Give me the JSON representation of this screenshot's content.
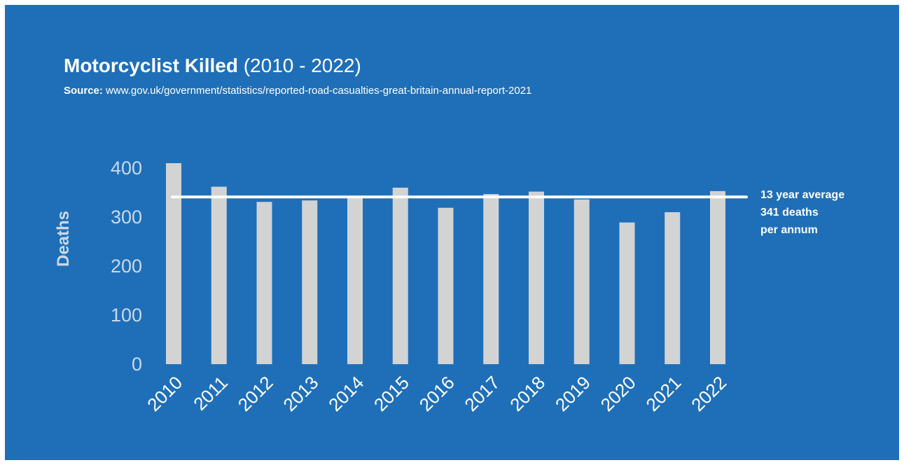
{
  "page": {
    "background": "#ffffff",
    "panel_color": "#1f6fb8",
    "title_bold": "Motorcyclist Killed",
    "title_light": "(2010 - 2022)",
    "source_label": "Source:",
    "source_url": "www.gov.uk/government/statistics/reported-road-casualties-great-britain-annual-report-2021"
  },
  "chart_data": {
    "type": "bar",
    "categories": [
      "2010",
      "2011",
      "2012",
      "2013",
      "2014",
      "2015",
      "2016",
      "2017",
      "2018",
      "2019",
      "2020",
      "2021",
      "2022"
    ],
    "values": [
      410,
      362,
      331,
      334,
      339,
      360,
      319,
      347,
      352,
      336,
      289,
      310,
      353
    ],
    "ylabel": "Deaths",
    "xlabel": "",
    "ylim": [
      0,
      400
    ],
    "yticks": [
      0,
      100,
      200,
      300,
      400
    ],
    "grid": false,
    "legend": "none",
    "bar_color": "#d3d3d3",
    "average_line": {
      "value": 341,
      "color": "#ffffff",
      "label_lines": [
        "13 year average",
        "341 deaths",
        "per annum"
      ]
    }
  }
}
